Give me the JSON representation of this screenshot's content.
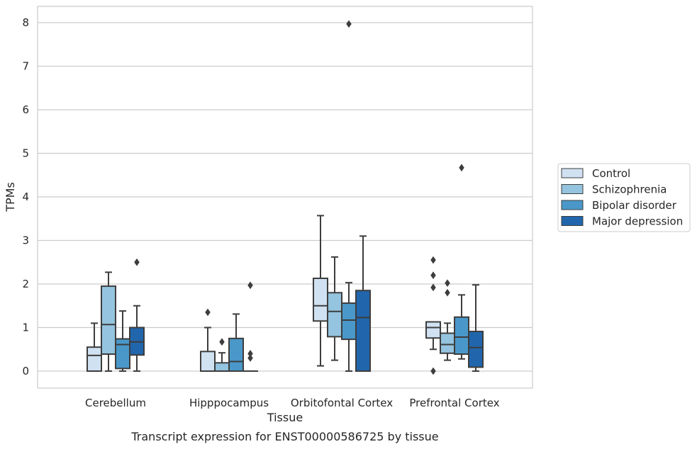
{
  "caption": "Transcript expression for ENST00000586725 by tissue",
  "chart_data": {
    "type": "boxplot",
    "title": "",
    "xlabel": "Tissue",
    "ylabel": "TPMs",
    "ylim": [
      -0.4,
      8.38
    ],
    "yticks": [
      0,
      1,
      2,
      3,
      4,
      5,
      6,
      7,
      8
    ],
    "grid": "horizontal",
    "legend_position": "right",
    "categories": [
      "Cerebellum",
      "Hipppocampus",
      "Orbitofontal Cortex",
      "Prefrontal Cortex"
    ],
    "series": [
      {
        "name": "Control",
        "color": "#d0e1f2",
        "boxes": [
          {
            "whislo": 0.0,
            "q1": 0.0,
            "med": 0.36,
            "q3": 0.55,
            "whishi": 1.1,
            "fliers": []
          },
          {
            "whislo": 0.0,
            "q1": 0.0,
            "med": 0.0,
            "q3": 0.45,
            "whishi": 1.0,
            "fliers": [
              1.35
            ]
          },
          {
            "whislo": 0.12,
            "q1": 1.15,
            "med": 1.5,
            "q3": 2.13,
            "whishi": 3.57,
            "fliers": []
          },
          {
            "whislo": 0.5,
            "q1": 0.76,
            "med": 1.0,
            "q3": 1.13,
            "whishi": 1.13,
            "fliers": [
              0.0,
              1.92,
              2.2,
              2.55
            ]
          }
        ]
      },
      {
        "name": "Schizophrenia",
        "color": "#94c4df",
        "boxes": [
          {
            "whislo": 0.0,
            "q1": 0.39,
            "med": 1.07,
            "q3": 1.95,
            "whishi": 2.27,
            "fliers": []
          },
          {
            "whislo": 0.0,
            "q1": 0.0,
            "med": 0.0,
            "q3": 0.19,
            "whishi": 0.42,
            "fliers": [
              0.67
            ]
          },
          {
            "whislo": 0.25,
            "q1": 0.79,
            "med": 1.37,
            "q3": 1.8,
            "whishi": 2.62,
            "fliers": []
          },
          {
            "whislo": 0.25,
            "q1": 0.41,
            "med": 0.61,
            "q3": 0.87,
            "whishi": 1.1,
            "fliers": [
              1.8,
              2.02
            ]
          }
        ]
      },
      {
        "name": "Bipolar disorder",
        "color": "#4a98c9",
        "boxes": [
          {
            "whislo": 0.0,
            "q1": 0.06,
            "med": 0.61,
            "q3": 0.74,
            "whishi": 1.38,
            "fliers": []
          },
          {
            "whislo": 0.0,
            "q1": 0.0,
            "med": 0.22,
            "q3": 0.75,
            "whishi": 1.31,
            "fliers": []
          },
          {
            "whislo": 0.0,
            "q1": 0.73,
            "med": 1.17,
            "q3": 1.56,
            "whishi": 2.03,
            "fliers": [
              7.97
            ]
          },
          {
            "whislo": 0.28,
            "q1": 0.39,
            "med": 0.78,
            "q3": 1.24,
            "whishi": 1.75,
            "fliers": [
              4.67
            ]
          }
        ]
      },
      {
        "name": "Major depression",
        "color": "#2166ac",
        "boxes": [
          {
            "whislo": 0.0,
            "q1": 0.37,
            "med": 0.67,
            "q3": 1.0,
            "whishi": 1.5,
            "fliers": [
              2.5
            ]
          },
          {
            "whislo": 0.0,
            "q1": 0.0,
            "med": 0.0,
            "q3": 0.0,
            "whishi": 0.0,
            "fliers": [
              0.3,
              0.4,
              1.97
            ]
          },
          {
            "whislo": 0.0,
            "q1": 0.0,
            "med": 1.23,
            "q3": 1.85,
            "whishi": 3.1,
            "fliers": []
          },
          {
            "whislo": 0.0,
            "q1": 0.09,
            "med": 0.54,
            "q3": 0.91,
            "whishi": 1.98,
            "fliers": []
          }
        ]
      }
    ]
  }
}
